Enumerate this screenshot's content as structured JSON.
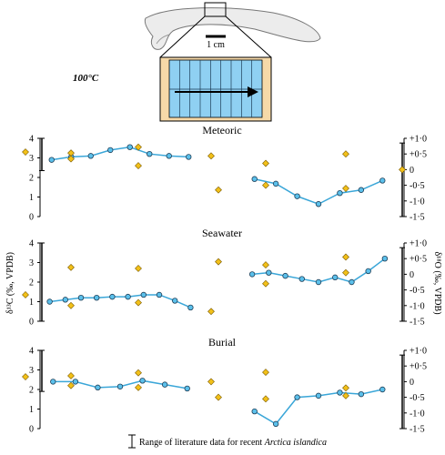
{
  "colors": {
    "series_line": "#3aa6d8",
    "series_point": "#5bc0eb",
    "literature_point": "#f2c019",
    "range_bar": "#000000",
    "block_fill": "#f6d9a8",
    "strip_fill": "#8fd0f2",
    "shell_fill": "#ececec"
  },
  "figure": {
    "temperature_label": "100°C",
    "scale_label": "1 cm",
    "legend_text_prefix": "Range of literature data for recent ",
    "legend_text_species": "Arctica islandica"
  },
  "chart_data": {
    "type": "scatter",
    "ylabel_left": "δ¹³C (‰, VPDB)",
    "ylabel_right": "δ¹⁸O (‰, VPDB)",
    "left_axis": {
      "ylim": [
        0,
        4
      ],
      "ticks": [
        "0",
        "1",
        "2",
        "3",
        "4"
      ]
    },
    "right_axis": {
      "ylim": [
        -1.5,
        1.0
      ],
      "ticks": [
        "+1·0",
        "+0·5",
        "0",
        "-0·5",
        "-1·0",
        "-1·5"
      ]
    },
    "panels": [
      {
        "title": "Meteoric",
        "carbon": {
          "series": [
            2.9,
            3.05,
            3.1,
            3.4,
            3.55,
            3.2,
            3.1,
            3.05
          ],
          "literature_points": [
            3.3,
            3.25,
            2.95,
            3.55,
            2.6,
            3.1
          ],
          "range": [
            2.35,
            4.0
          ]
        },
        "oxygen": {
          "series": [
            -0.3,
            -0.45,
            -0.85,
            -1.1,
            -0.75,
            -0.65,
            -0.35
          ],
          "literature_points": [
            -0.65,
            0.2,
            -0.5,
            0.5,
            -0.6,
            0.0
          ],
          "range": [
            -1.5,
            0.85
          ]
        }
      },
      {
        "title": "Seawater",
        "carbon": {
          "series": [
            1.0,
            1.1,
            1.2,
            1.2,
            1.25,
            1.25,
            1.35,
            1.35,
            1.05,
            0.7
          ],
          "literature_points": [
            1.35,
            2.75,
            0.8,
            2.7,
            0.95,
            0.5
          ],
          "range": [
            0.0,
            4.0
          ]
        },
        "oxygen": {
          "series": [
            0.0,
            0.05,
            -0.05,
            -0.15,
            -0.25,
            -0.1,
            -0.25,
            0.1,
            0.5
          ],
          "literature_points": [
            0.4,
            0.3,
            -0.3,
            0.55,
            0.05
          ],
          "range": [
            -1.5,
            0.85
          ]
        }
      },
      {
        "title": "Burial",
        "carbon": {
          "series": [
            2.4,
            2.4,
            2.1,
            2.15,
            2.45,
            2.25,
            2.05
          ],
          "literature_points": [
            2.65,
            2.7,
            2.2,
            2.85,
            2.1,
            2.4
          ],
          "range": [
            1.9,
            4.0
          ]
        },
        "oxygen": {
          "series": [
            -0.95,
            -1.35,
            -0.5,
            -0.45,
            -0.35,
            -0.4,
            -0.25
          ],
          "literature_points": [
            -0.5,
            0.3,
            -0.55,
            -0.45,
            -0.2
          ],
          "range": [
            -1.5,
            0.85
          ]
        }
      }
    ]
  }
}
